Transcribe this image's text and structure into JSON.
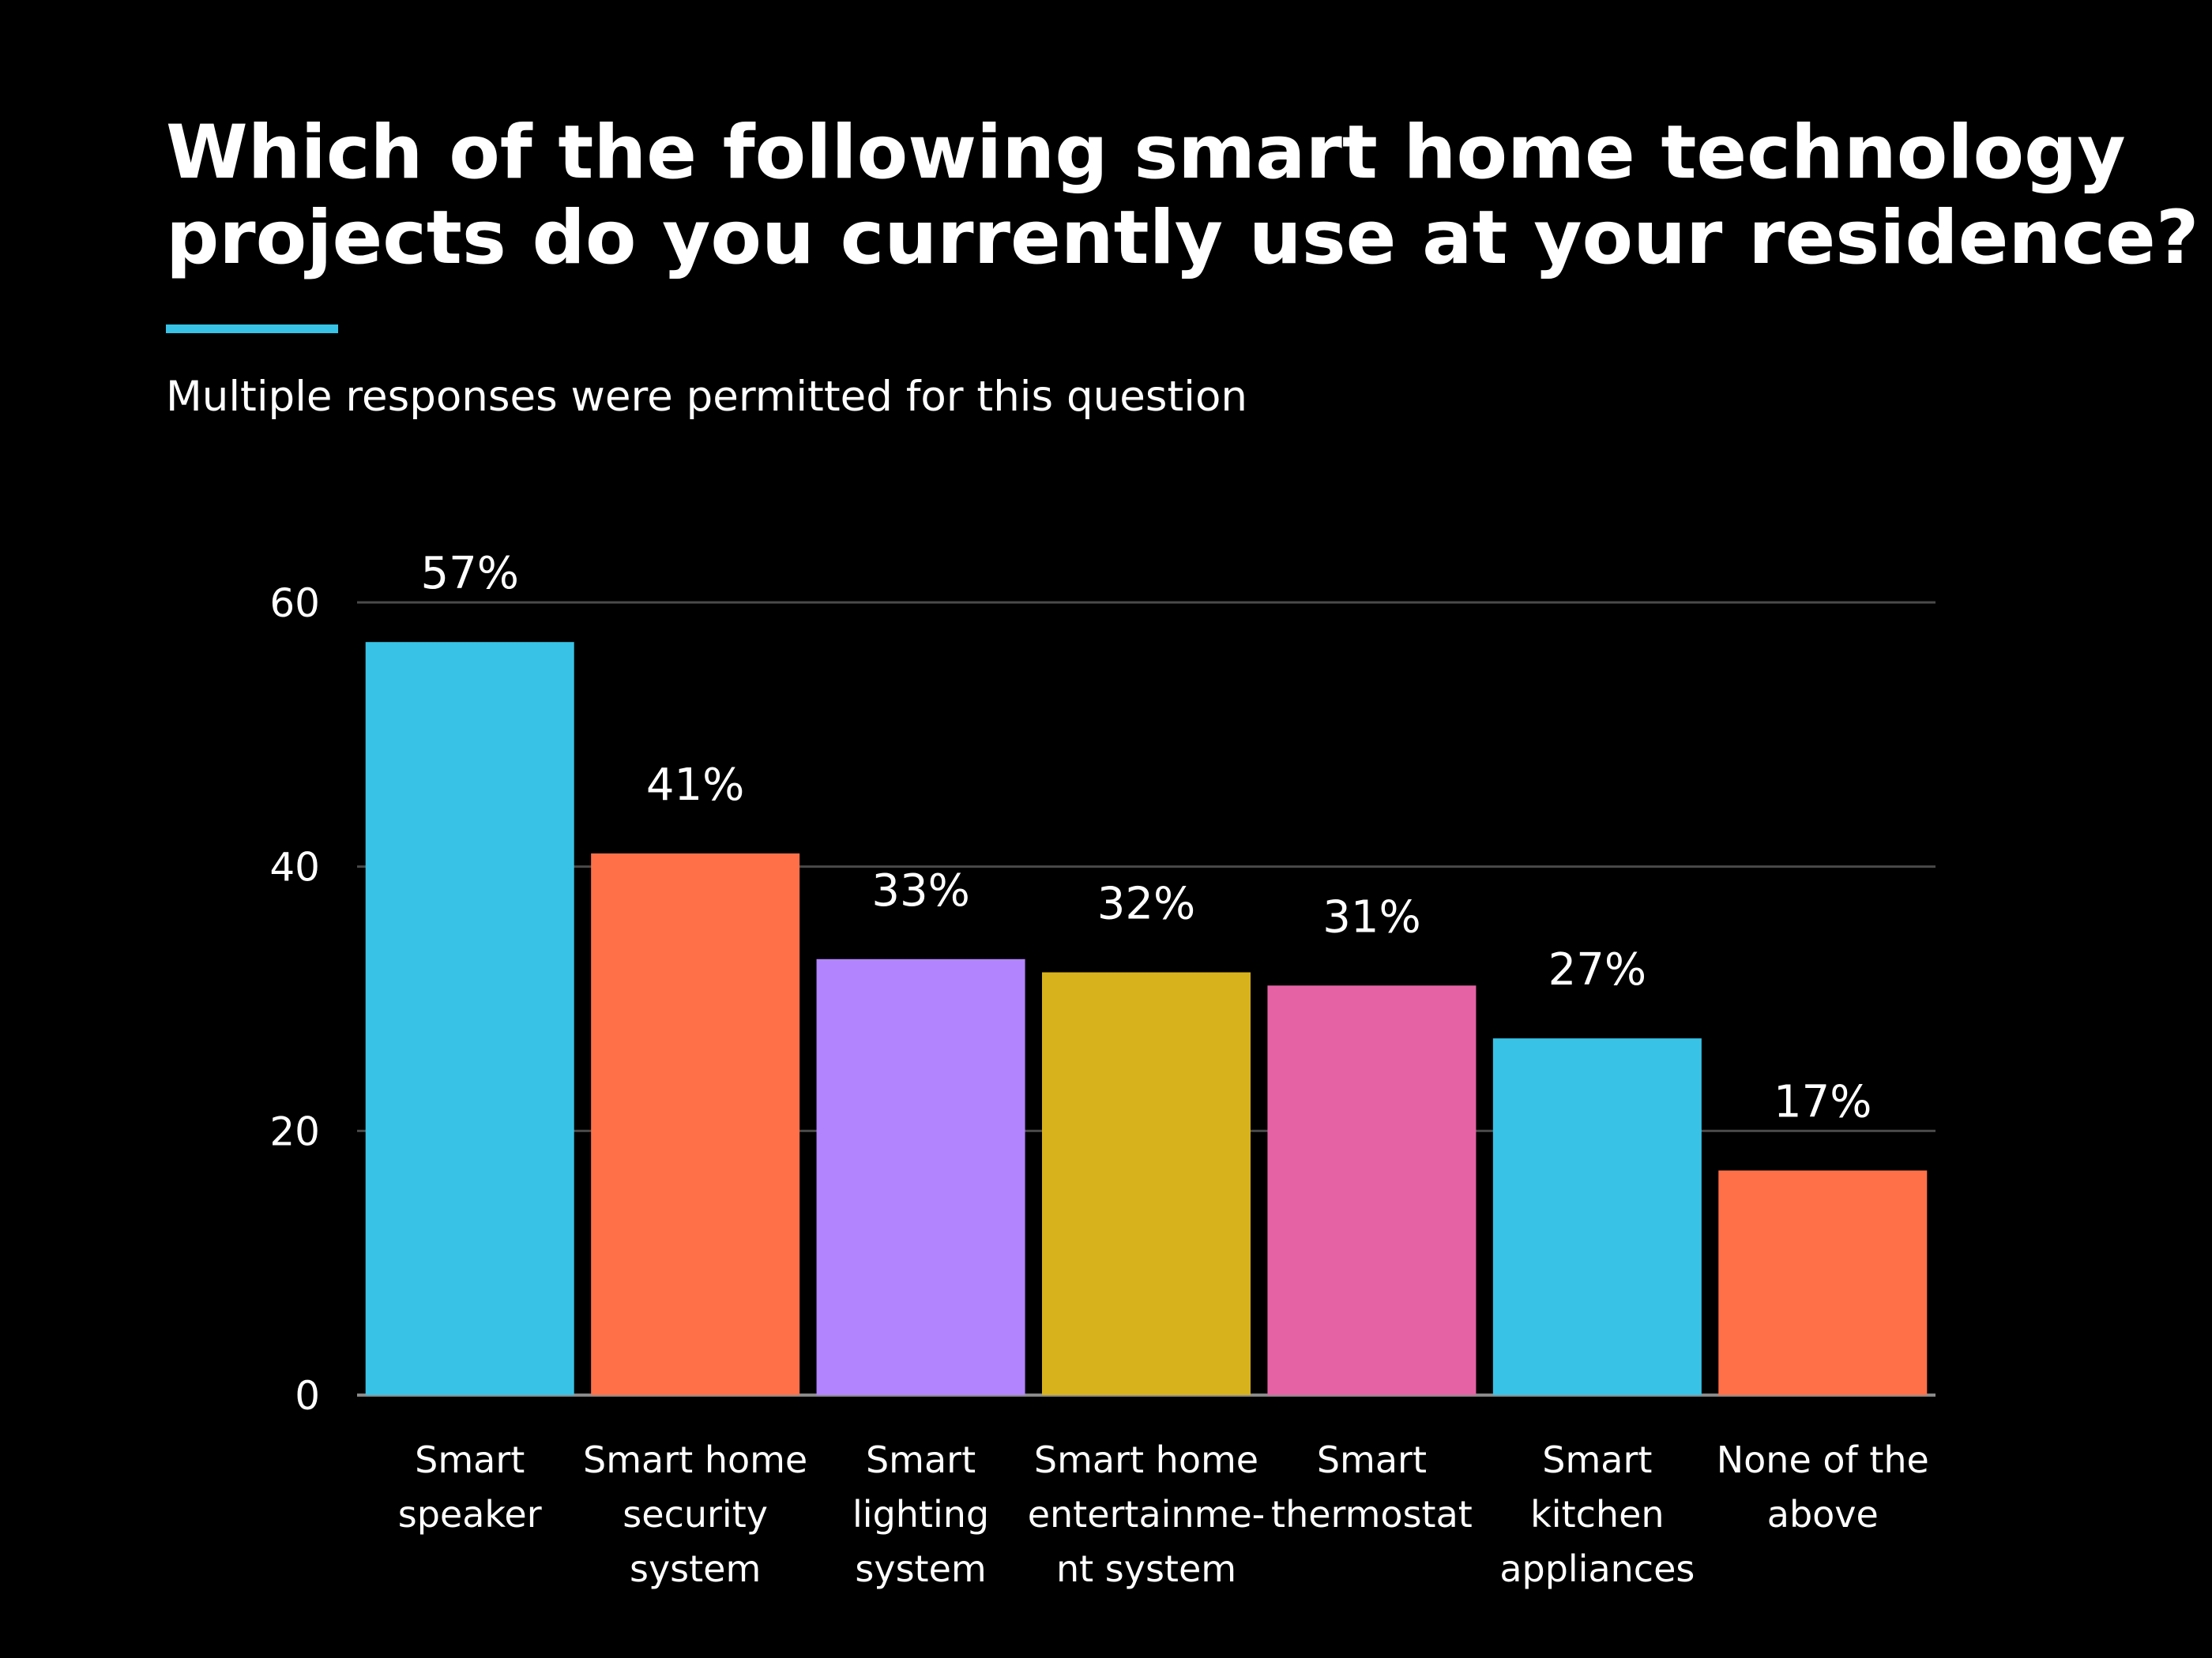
{
  "page": {
    "title_lines": [
      "Which of the following smart home technology",
      "projects do you currently use at your residence?"
    ],
    "subtitle": "Multiple responses were permitted for this question",
    "background_color": "#000000",
    "accent_color": "#38c3e6"
  },
  "chart_data": {
    "type": "bar",
    "title": "Which of the following smart home technology projects do you currently use at your residence?",
    "subtitle": "Multiple responses were permitted for this question",
    "categories": [
      [
        "Smart",
        "speaker"
      ],
      [
        "Smart home",
        "security",
        "system"
      ],
      [
        "Smart",
        "lighting",
        "system"
      ],
      [
        "Smart home",
        "entertainme-",
        "nt system"
      ],
      [
        "Smart",
        "thermostat"
      ],
      [
        "Smart",
        "kitchen",
        "appliances"
      ],
      [
        "None of the",
        "above"
      ]
    ],
    "values": [
      57,
      41,
      33,
      32,
      31,
      27,
      17
    ],
    "data_labels": [
      "57%",
      "41%",
      "33%",
      "32%",
      "31%",
      "27%",
      "17%"
    ],
    "colors": [
      "#38c3e6",
      "#ff7049",
      "#b285ff",
      "#d8b21c",
      "#e563a4",
      "#38c3e6",
      "#ff7049"
    ],
    "ylim": [
      0,
      60
    ],
    "yticks": [
      0,
      20,
      40,
      60
    ],
    "ytick_labels": [
      "0",
      "20",
      "40",
      "60"
    ],
    "xlabel": "",
    "ylabel": "",
    "grid": true,
    "grid_color": "#4a4a4a",
    "legend": "none"
  }
}
